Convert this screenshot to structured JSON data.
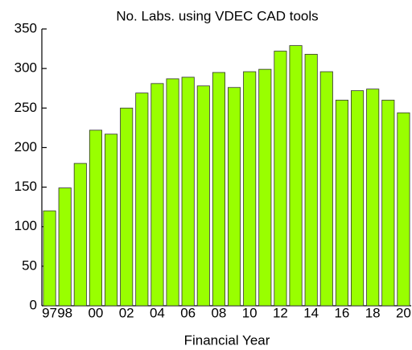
{
  "chart_data": {
    "type": "bar",
    "title": "No. Labs. using VDEC CAD tools",
    "x_label": "Financial Year",
    "categories": [
      "97",
      "98",
      null,
      "00",
      null,
      "02",
      null,
      "04",
      null,
      "06",
      null,
      "08",
      null,
      "10",
      null,
      "12",
      null,
      "14",
      null,
      "16",
      null,
      "18",
      null,
      "20"
    ],
    "values": [
      120,
      149,
      180,
      222,
      217,
      250,
      269,
      281,
      287,
      289,
      278,
      295,
      276,
      296,
      299,
      322,
      329,
      318,
      296,
      260,
      272,
      274,
      260,
      244
    ],
    "color": "#99ff00",
    "ylim": [
      0,
      350
    ],
    "yticks": [
      0,
      50,
      100,
      150,
      200,
      250,
      300,
      350
    ],
    "grid": false
  }
}
